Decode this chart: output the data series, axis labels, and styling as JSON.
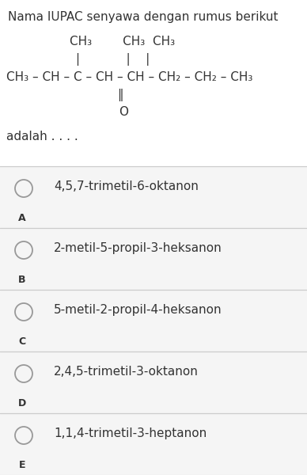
{
  "title": "Nama IUPAC senyawa dengan rumus berikut",
  "bg_color": "#ffffff",
  "text_color": "#333333",
  "line_color": "#cccccc",
  "circle_color": "#999999",
  "option_bg": "#f5f5f5",
  "title_fontsize": 11,
  "formula_fontsize": 11,
  "option_text_fontsize": 11,
  "label_fontsize": 9,
  "adalah_fontsize": 11,
  "options": [
    {
      "label": "A",
      "text": "4,5,7-trimetil-6-oktanon"
    },
    {
      "label": "B",
      "text": "2-metil-5-propil-3-heksanon"
    },
    {
      "label": "C",
      "text": "5-metil-2-propil-4-heksanon"
    },
    {
      "label": "D",
      "text": "2,4,5-trimetil-3-oktanon"
    },
    {
      "label": "E",
      "text": "1,1,4-trimetil-3-heptanon"
    }
  ]
}
